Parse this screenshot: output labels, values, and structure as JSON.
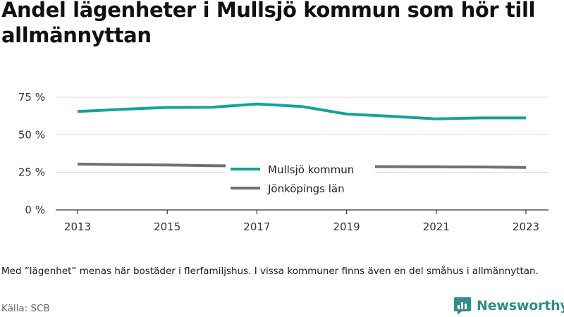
{
  "title": "Andel lägenheter i Mullsjö kommun som hör till allmännyttan",
  "note": "Med ”lägenhet” menas här bostäder i flerfamiljshus. I vissa kommuner finns även en del småhus i allmännyttan.",
  "source": "Källa: SCB",
  "brand": {
    "name": "Newsworthy",
    "icon": "newsworthy-logo-icon",
    "color": "#2e8e8a"
  },
  "chart_data": {
    "type": "line",
    "title": "Andel lägenheter i Mullsjö kommun som hör till allmännyttan",
    "x": [
      2013,
      2014,
      2015,
      2016,
      2017,
      2018,
      2019,
      2020,
      2021,
      2022,
      2023
    ],
    "x_ticks": [
      "2013",
      "2015",
      "2017",
      "2019",
      "2021",
      "2023"
    ],
    "y_ticks": [
      "0 %",
      "25 %",
      "50 %",
      "75 %"
    ],
    "ylim": [
      0,
      75
    ],
    "xlim": [
      2013,
      2023
    ],
    "grid": "horizontal",
    "legend_position": "center",
    "series": [
      {
        "name": "Mullsjö kommun",
        "color": "#14a39a",
        "values": [
          65.5,
          67.0,
          68.2,
          68.3,
          70.5,
          68.8,
          63.8,
          62.3,
          60.6,
          61.2,
          61.2
        ]
      },
      {
        "name": "Jönköpings län",
        "color": "#6f6f75",
        "values": [
          30.5,
          30.1,
          29.9,
          29.4,
          29.2,
          29.0,
          28.9,
          28.8,
          28.7,
          28.6,
          28.2
        ]
      }
    ]
  }
}
